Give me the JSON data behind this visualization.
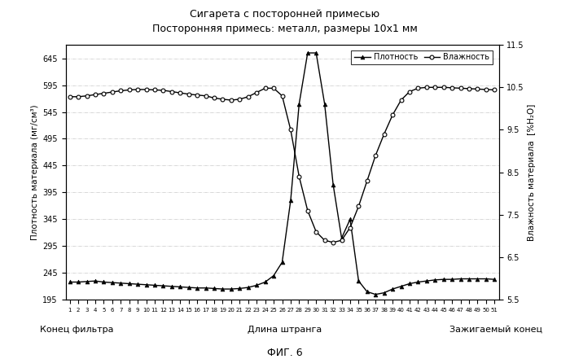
{
  "title_line1": "Сигарета с посторонней примесью",
  "title_line2": "Посторонняя примесь: металл, размеры 10x1 мм",
  "xlabel_left": "Конец фильтра",
  "xlabel_center": "Длина штранга",
  "xlabel_right": "Зажигаемый конец",
  "ylabel_left": "Плотность материала (мг/см³)",
  "ylabel_right": "Влажность материала  [%H₂O]",
  "fig_label": "ФИГ. 6",
  "legend_density": "Плотность",
  "legend_moisture": "Влажность",
  "x": [
    1,
    2,
    3,
    4,
    5,
    6,
    7,
    8,
    9,
    10,
    11,
    12,
    13,
    14,
    15,
    16,
    17,
    18,
    19,
    20,
    21,
    22,
    23,
    24,
    25,
    26,
    27,
    28,
    29,
    30,
    31,
    32,
    33,
    34,
    35,
    36,
    37,
    38,
    39,
    40,
    41,
    42,
    43,
    44,
    45,
    46,
    47,
    48,
    49,
    50,
    51
  ],
  "density": [
    228,
    228,
    229,
    230,
    228,
    227,
    226,
    225,
    224,
    223,
    222,
    221,
    220,
    219,
    218,
    217,
    217,
    216,
    215,
    215,
    216,
    218,
    222,
    228,
    240,
    265,
    380,
    560,
    655,
    655,
    560,
    410,
    310,
    345,
    230,
    210,
    205,
    208,
    215,
    220,
    225,
    228,
    230,
    232,
    233,
    233,
    234,
    234,
    234,
    234,
    233
  ],
  "moisture": [
    10.28,
    10.28,
    10.3,
    10.33,
    10.36,
    10.39,
    10.42,
    10.44,
    10.45,
    10.45,
    10.44,
    10.43,
    10.4,
    10.37,
    10.34,
    10.32,
    10.3,
    10.25,
    10.22,
    10.2,
    10.22,
    10.28,
    10.38,
    10.48,
    10.48,
    10.3,
    9.5,
    8.4,
    7.6,
    7.1,
    6.9,
    6.85,
    6.9,
    7.2,
    7.7,
    8.3,
    8.9,
    9.4,
    9.85,
    10.2,
    10.4,
    10.48,
    10.5,
    10.5,
    10.5,
    10.49,
    10.48,
    10.47,
    10.46,
    10.45,
    10.44
  ],
  "density_ylim": [
    195,
    670
  ],
  "moisture_ylim": [
    5.5,
    11.5
  ],
  "density_yticks": [
    195,
    245,
    295,
    345,
    395,
    445,
    495,
    545,
    595,
    645
  ],
  "moisture_yticks": [
    5.5,
    6.5,
    7.5,
    8.5,
    9.5,
    10.5,
    11.5
  ],
  "background_color": "#ffffff",
  "line_color": "#000000",
  "grid_color": "#bbbbbb"
}
